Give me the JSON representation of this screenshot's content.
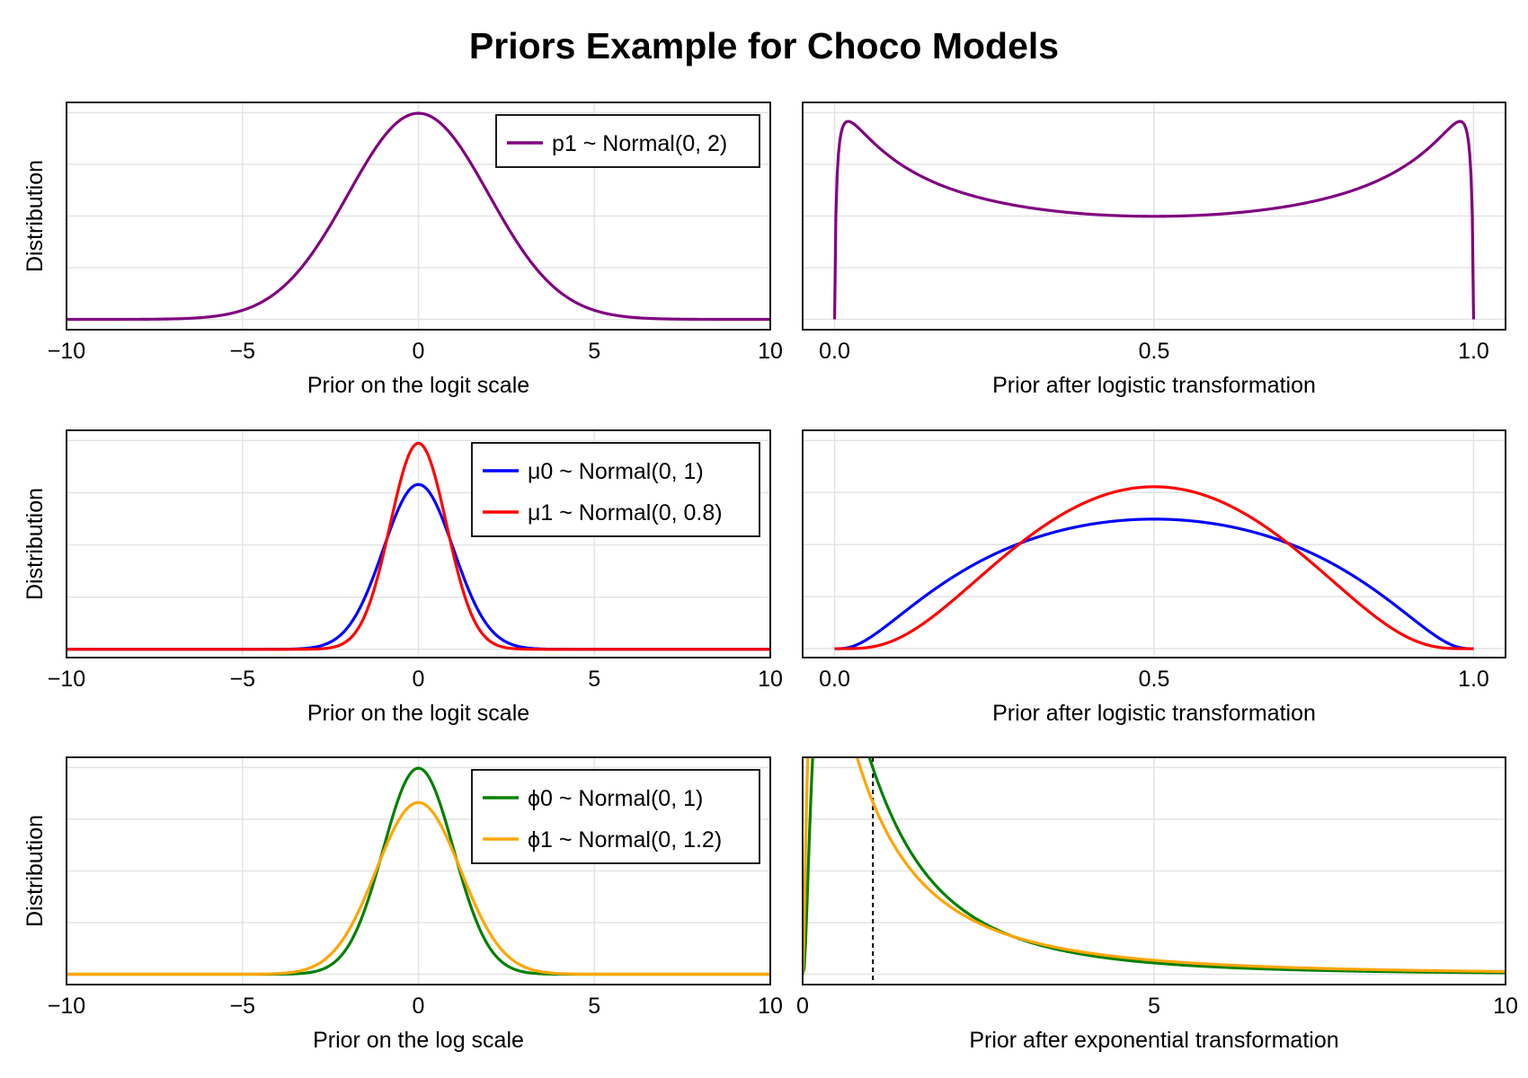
{
  "title": "Priors Example for Choco Models",
  "colors": {
    "p1": "#800080",
    "mu0": "#0000ff",
    "mu1": "#ff0000",
    "phi0": "#008000",
    "phi1": "#ffa500",
    "grid": "#e3e3e3",
    "axis": "#000000",
    "marker": "#000000"
  },
  "chart_data": [
    {
      "id": "p1-logit",
      "type": "line",
      "xlabel": "Prior on the logit scale",
      "ylabel": "Distribution",
      "xlim": [
        -10,
        10
      ],
      "xticks": [
        -10,
        -5,
        0,
        5,
        10
      ],
      "xtick_labels": [
        "−10",
        "−5",
        "0",
        "5",
        "10"
      ],
      "ylim": [
        -0.01,
        0.21
      ],
      "yticks_hidden": true,
      "grid": true,
      "legend": "top-right",
      "series": [
        {
          "name": "p1 ~ Normal(0, 2)",
          "color": "#800080",
          "dist": {
            "family": "normal",
            "mu": 0,
            "sigma": 2,
            "scale": "logit"
          },
          "x_range": [
            -10,
            10
          ]
        }
      ]
    },
    {
      "id": "p1-prob",
      "type": "line",
      "xlabel": "Prior after logistic transformation",
      "ylabel": "",
      "xlim": [
        -0.05,
        1.05
      ],
      "xticks": [
        0.0,
        0.5,
        1.0
      ],
      "xtick_labels": [
        "0.0",
        "0.5",
        "1.0"
      ],
      "ylim": [
        -0.08,
        1.68
      ],
      "yticks_hidden": true,
      "grid": true,
      "legend": "none",
      "series": [
        {
          "name": "",
          "color": "#800080",
          "dist": {
            "family": "normal",
            "mu": 0,
            "sigma": 2,
            "scale": "logistic"
          },
          "x_range": [
            0.0,
            1.0
          ]
        }
      ]
    },
    {
      "id": "mu-logit",
      "type": "line",
      "xlabel": "Prior on the logit scale",
      "ylabel": "Distribution",
      "xlim": [
        -10,
        10
      ],
      "xticks": [
        -10,
        -5,
        0,
        5,
        10
      ],
      "xtick_labels": [
        "−10",
        "−5",
        "0",
        "5",
        "10"
      ],
      "ylim": [
        -0.02,
        0.53
      ],
      "yticks_hidden": true,
      "grid": true,
      "legend": "top-right",
      "series": [
        {
          "name": "μ0 ~ Normal(0, 1)",
          "color": "#0000ff",
          "dist": {
            "family": "normal",
            "mu": 0,
            "sigma": 1,
            "scale": "logit"
          },
          "x_range": [
            -10,
            10
          ]
        },
        {
          "name": "μ1 ~ Normal(0, 0.8)",
          "color": "#ff0000",
          "dist": {
            "family": "normal",
            "mu": 0,
            "sigma": 0.8,
            "scale": "logit"
          },
          "x_range": [
            -10,
            10
          ]
        }
      ]
    },
    {
      "id": "mu-prob",
      "type": "line",
      "xlabel": "Prior after logistic transformation",
      "ylabel": "",
      "xlim": [
        -0.05,
        1.05
      ],
      "xticks": [
        0.0,
        0.5,
        1.0
      ],
      "xtick_labels": [
        "0.0",
        "0.5",
        "1.0"
      ],
      "ylim": [
        -0.11,
        2.69
      ],
      "yticks_hidden": true,
      "grid": true,
      "legend": "none",
      "series": [
        {
          "name": "",
          "color": "#0000ff",
          "dist": {
            "family": "normal",
            "mu": 0,
            "sigma": 1,
            "scale": "logistic"
          },
          "x_range": [
            0.0,
            1.0
          ]
        },
        {
          "name": "",
          "color": "#ff0000",
          "dist": {
            "family": "normal",
            "mu": 0,
            "sigma": 0.8,
            "scale": "logistic"
          },
          "x_range": [
            0.0,
            1.0
          ]
        }
      ]
    },
    {
      "id": "phi-log",
      "type": "line",
      "xlabel": "Prior on the log scale",
      "ylabel": "Distribution",
      "xlim": [
        -10,
        10
      ],
      "xticks": [
        -10,
        -5,
        0,
        5,
        10
      ],
      "xtick_labels": [
        "−10",
        "−5",
        "0",
        "5",
        "10"
      ],
      "ylim": [
        -0.02,
        0.42
      ],
      "yticks_hidden": true,
      "grid": true,
      "legend": "top-right",
      "series": [
        {
          "name": "ϕ0 ~ Normal(0, 1)",
          "color": "#008000",
          "dist": {
            "family": "normal",
            "mu": 0,
            "sigma": 1,
            "scale": "log"
          },
          "x_range": [
            -10,
            10
          ]
        },
        {
          "name": "ϕ1 ~ Normal(0, 1.2)",
          "color": "#ffa500",
          "dist": {
            "family": "normal",
            "mu": 0,
            "sigma": 1.2,
            "scale": "log"
          },
          "x_range": [
            -10,
            10
          ]
        }
      ]
    },
    {
      "id": "phi-exp",
      "type": "line",
      "xlabel": "Prior after exponential transformation",
      "ylabel": "",
      "xlim": [
        0,
        10
      ],
      "xticks": [
        0,
        5,
        10
      ],
      "xtick_labels": [
        "0",
        "5",
        "10"
      ],
      "ylim": [
        -0.02,
        0.42
      ],
      "yticks_hidden": true,
      "grid": true,
      "legend": "none",
      "vline": 1,
      "series": [
        {
          "name": "",
          "color": "#008000",
          "dist": {
            "family": "normal",
            "mu": 0,
            "sigma": 1,
            "scale": "exponential"
          },
          "x_range": [
            0.001,
            10
          ]
        },
        {
          "name": "",
          "color": "#ffa500",
          "dist": {
            "family": "normal",
            "mu": 0,
            "sigma": 1.2,
            "scale": "exponential"
          },
          "x_range": [
            0.001,
            10
          ]
        }
      ]
    }
  ]
}
